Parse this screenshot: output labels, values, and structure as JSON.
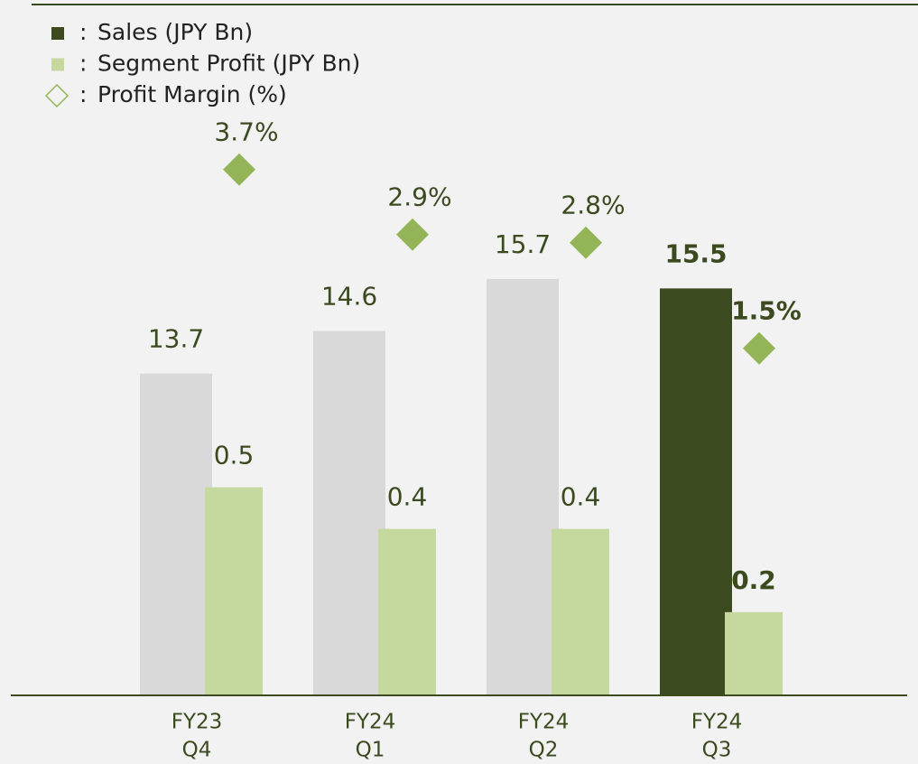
{
  "chart_data": {
    "type": "bar",
    "legend_separator": ":",
    "categories": [
      [
        "FY23",
        "Q4"
      ],
      [
        "FY24",
        "Q1"
      ],
      [
        "FY24",
        "Q2"
      ],
      [
        "FY24",
        "Q3"
      ]
    ],
    "series": [
      {
        "name": "Sales (JPY Bn)",
        "color": "#d9d9d9",
        "highlight_color": "#3b4a1f",
        "values": [
          13.7,
          14.6,
          15.7,
          15.5
        ]
      },
      {
        "name": "Segment Profit (JPY Bn)",
        "color": "#c5d89e",
        "axis": "y2",
        "values": [
          0.5,
          0.4,
          0.4,
          0.2
        ]
      },
      {
        "name": "Profit Margin (%)",
        "color": "#93b557",
        "axis": "y3",
        "type": "scatter",
        "values": [
          3.7,
          2.9,
          2.8,
          1.5
        ],
        "value_labels": [
          "3.7%",
          "2.9%",
          "2.8%",
          "1.5%"
        ]
      }
    ],
    "highlight_index": 3,
    "ylim": [
      6.9,
      21.5
    ],
    "y2lim": [
      0,
      1.66
    ],
    "y3lim": [
      -2.77,
      5.73
    ]
  }
}
